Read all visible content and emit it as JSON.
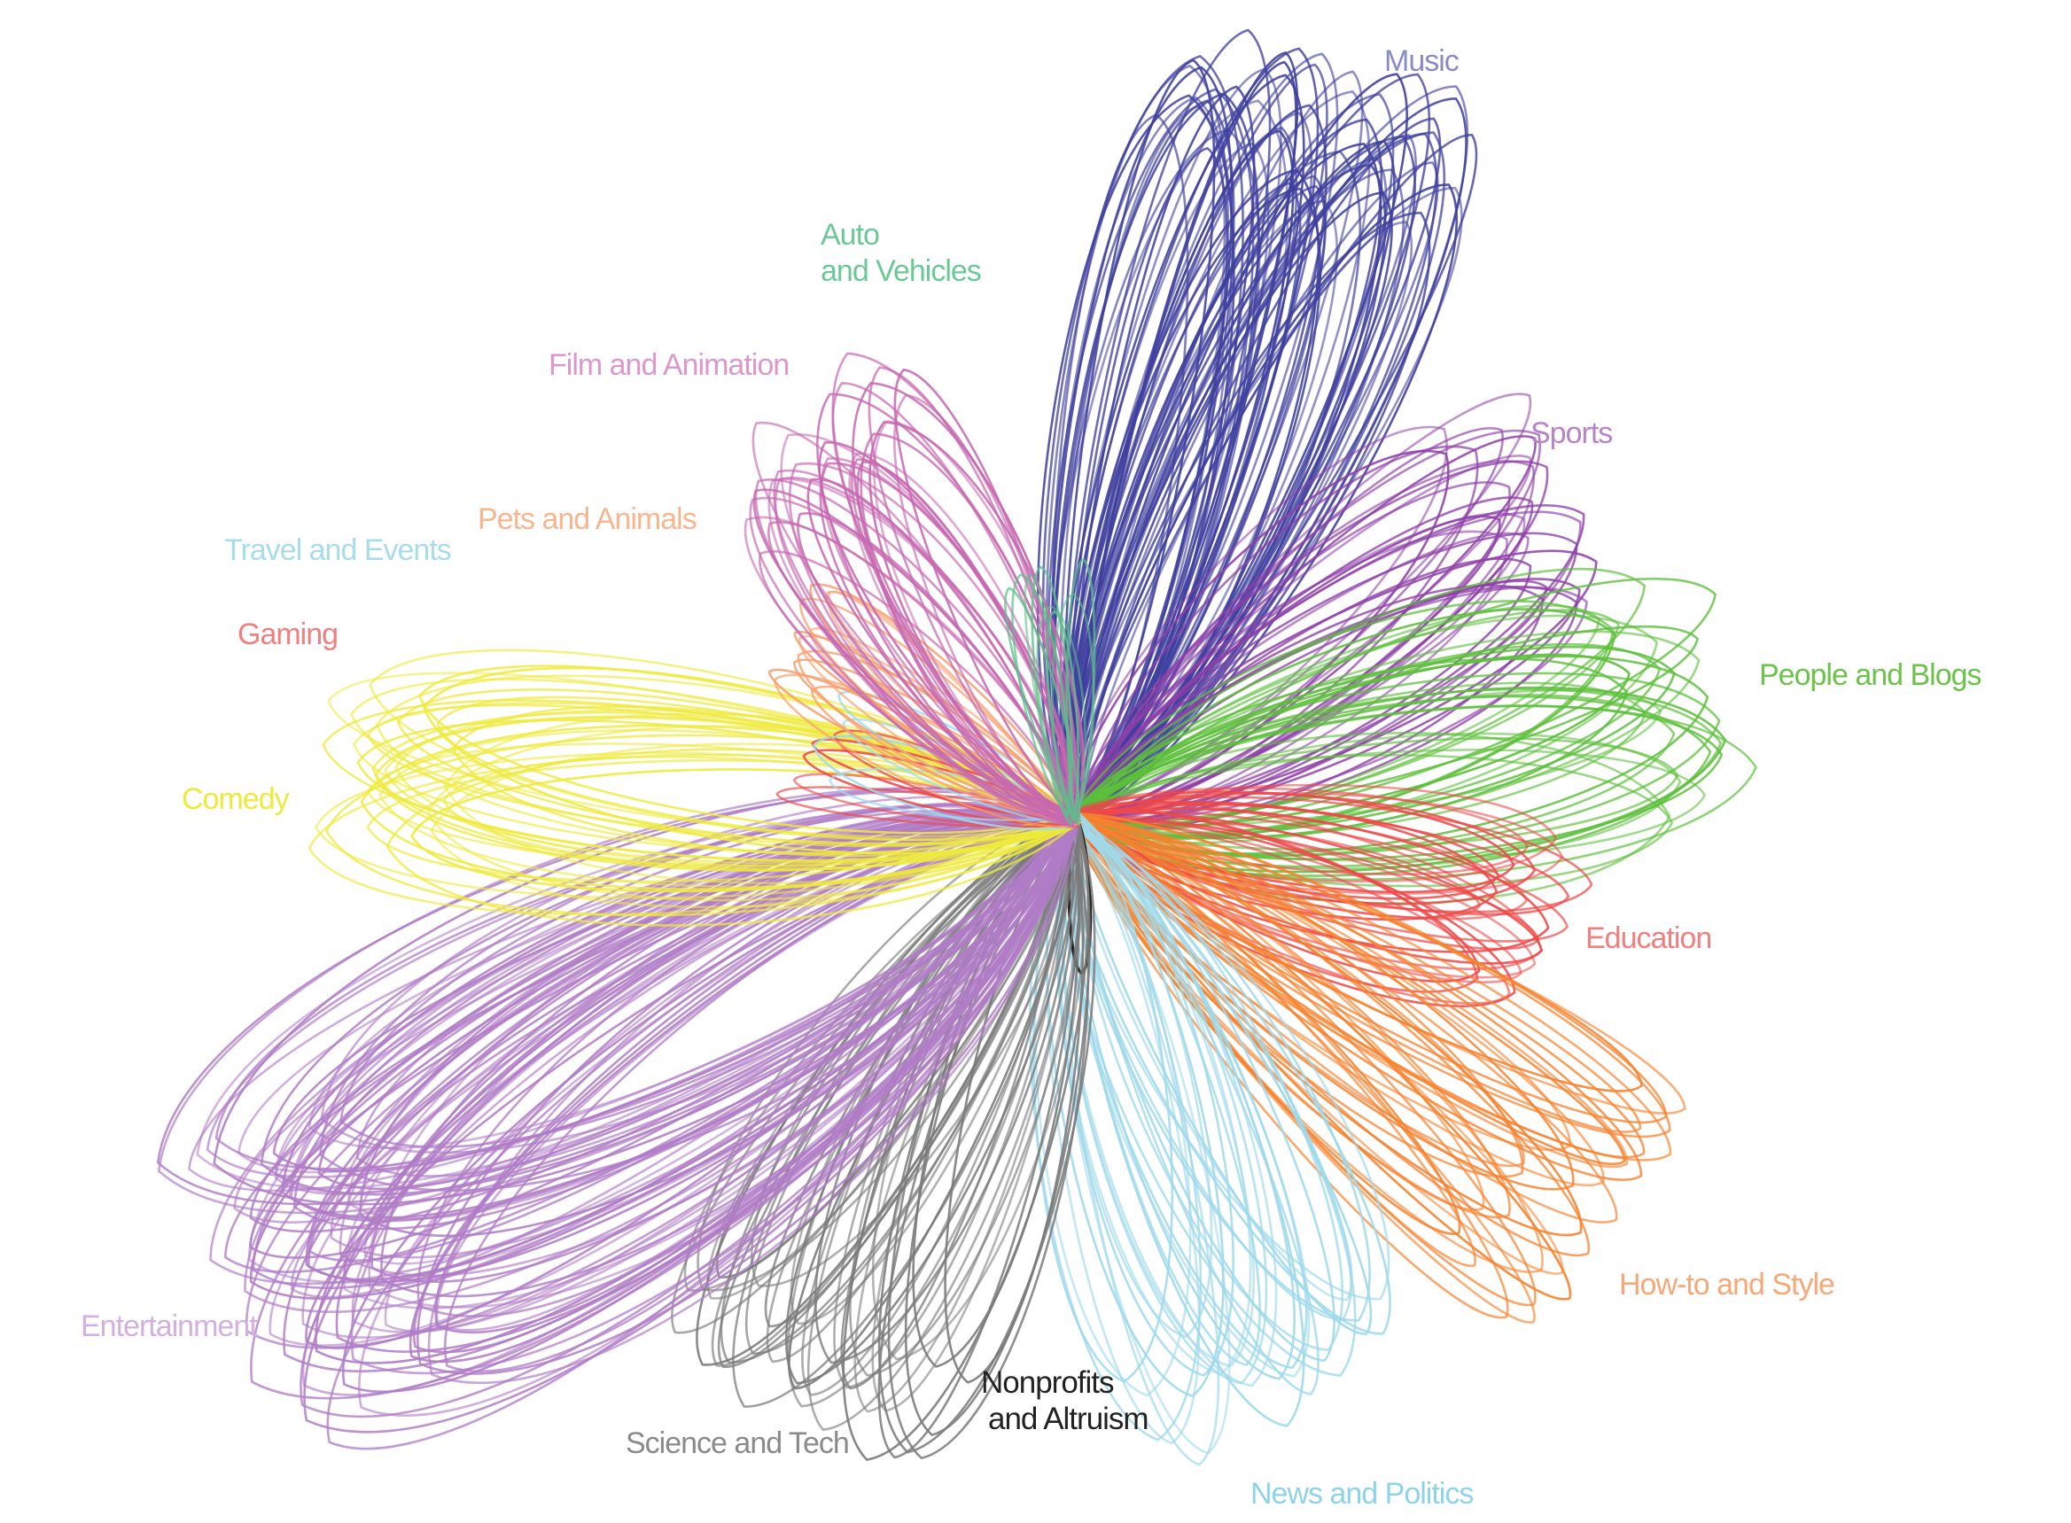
{
  "diagram": {
    "petals": [
      {
        "id": "music",
        "label": "Music",
        "color": "#3f3f9e",
        "loops": 60
      },
      {
        "id": "sports",
        "label": "Sports",
        "color": "#8e3fa8",
        "loops": 26
      },
      {
        "id": "people-and-blogs",
        "label": "People and Blogs",
        "color": "#5cbf3a",
        "loops": 28
      },
      {
        "id": "education",
        "label": "Education",
        "color": "#ee4848",
        "loops": 22
      },
      {
        "id": "how-to-and-style",
        "label": "How-to and Style",
        "color": "#f5822e",
        "loops": 28
      },
      {
        "id": "news-and-politics",
        "label": "News and Politics",
        "color": "#9fd9ea",
        "loops": 28
      },
      {
        "id": "nonprofits-and-altruism",
        "label_lines": [
          "Nonprofits",
          "and Altruism"
        ],
        "color": "#222222",
        "loops": 1
      },
      {
        "id": "science-and-tech",
        "label": "Science and Tech",
        "color": "#7a7a7a",
        "loops": 34
      },
      {
        "id": "entertainment",
        "label": "Entertainment",
        "color": "#b07cc6",
        "loops": 70
      },
      {
        "id": "comedy",
        "label": "Comedy",
        "color": "#eeea3c",
        "loops": 30
      },
      {
        "id": "gaming",
        "label": "Gaming",
        "color": "#ee4848",
        "loops": 5
      },
      {
        "id": "travel-and-events",
        "label": "Travel and Events",
        "color": "#9fd9ea",
        "loops": 4
      },
      {
        "id": "pets-and-animals",
        "label": "Pets and Animals",
        "color": "#f5a070",
        "loops": 12
      },
      {
        "id": "film-and-animation",
        "label": "Film and Animation",
        "color": "#c768b0",
        "loops": 30
      },
      {
        "id": "auto-and-vehicles",
        "label_lines": [
          "Auto",
          "and Vehicles"
        ],
        "color": "#5cbf8a",
        "loops": 8
      }
    ],
    "label_colors": {
      "music": "#8b8bc6",
      "sports": "#b784c9",
      "people-and-blogs": "#6cc24a",
      "education": "#f07f7f",
      "how-to-and-style": "#f7a878",
      "news-and-politics": "#8fd3e8",
      "nonprofits-and-altruism": "#222222",
      "science-and-tech": "#8a8a8a",
      "entertainment": "#d2b0e0",
      "comedy": "#eeea3c",
      "gaming": "#f07f7f",
      "travel-and-events": "#a8dcea",
      "pets-and-animals": "#f7b690",
      "film-and-animation": "#dc98cc",
      "auto-and-vehicles": "#6cc896"
    }
  }
}
